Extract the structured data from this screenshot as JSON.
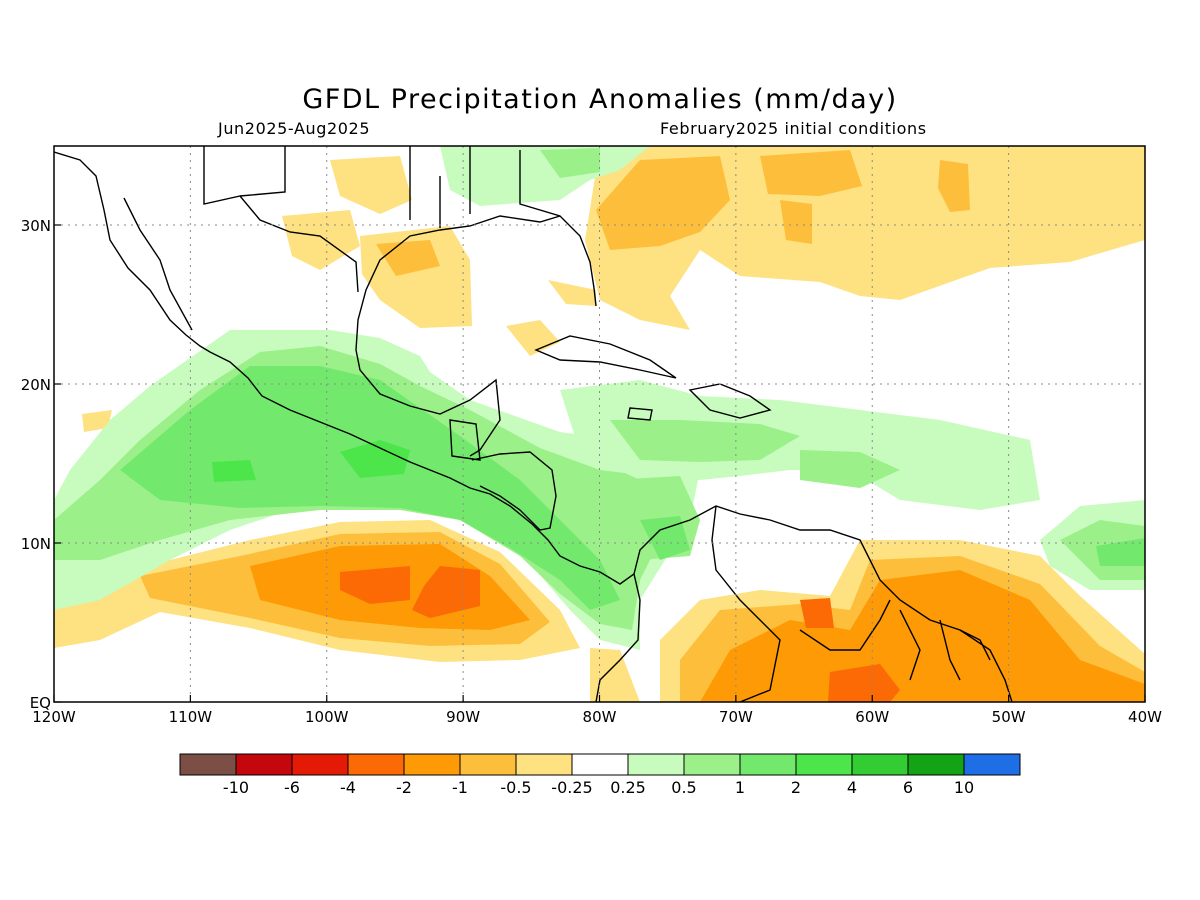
{
  "title": "GFDL Precipitation Anomalies (mm/day)",
  "subtitle_left": "Jun2025-Aug2025",
  "subtitle_right": "February2025 initial conditions",
  "lat_labels": [
    "30N",
    "20N",
    "10N",
    "EQ"
  ],
  "lon_labels": [
    "120W",
    "110W",
    "100W",
    "90W",
    "80W",
    "70W",
    "60W",
    "50W",
    "40W"
  ],
  "colorbar": {
    "colors": [
      "#7b4f46",
      "#c4060d",
      "#e31a05",
      "#fb6a05",
      "#fd9a06",
      "#fdbf3b",
      "#fee181",
      "#ffffff",
      "#c8fcbf",
      "#9bf089",
      "#72e96d",
      "#4ce64a",
      "#33cc33",
      "#14a314",
      "#1e6ee6"
    ],
    "labels": [
      "-10",
      "-6",
      "-4",
      "-2",
      "-1",
      "-0.5",
      "-0.25",
      "0.25",
      "0.5",
      "1",
      "2",
      "4",
      "6",
      "10"
    ]
  }
}
